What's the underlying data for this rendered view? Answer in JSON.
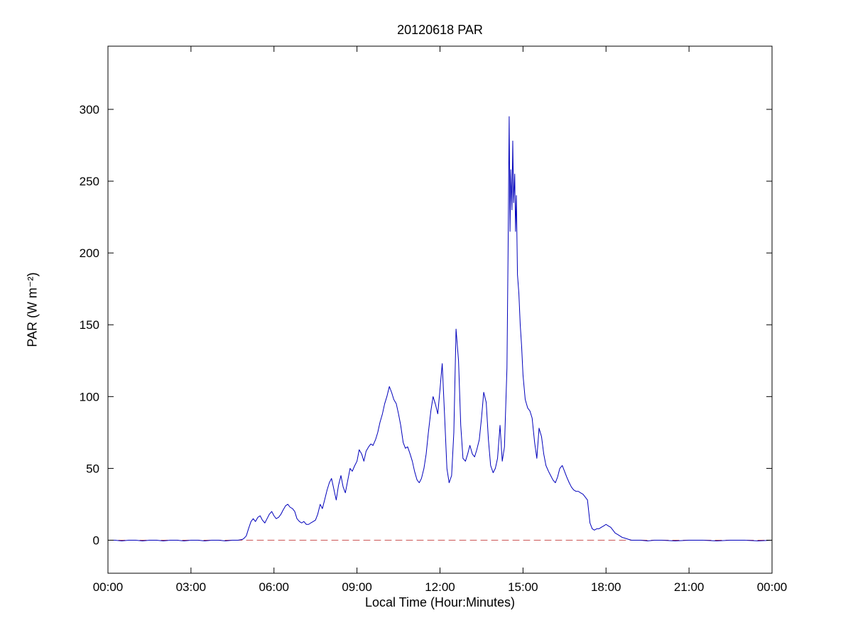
{
  "figure": {
    "title": "20120618 PAR",
    "xlabel": "Local Time (Hour:Minutes)",
    "ylabel": "PAR (W m⁻²)"
  },
  "colors": {
    "series_line": "#0000bb",
    "zero_line": "#cc5555",
    "axis": "#000000",
    "background": "#ffffff"
  },
  "chart_data": {
    "type": "line",
    "title": "20120618 PAR",
    "xlabel": "Local Time (Hour:Minutes)",
    "ylabel": "PAR (W m-2)",
    "xlim": [
      0,
      24
    ],
    "ylim": [
      -23,
      344
    ],
    "grid": false,
    "legend": "none",
    "xticks": [
      0,
      3,
      6,
      9,
      12,
      15,
      18,
      21,
      24
    ],
    "xticklabels": [
      "00:00",
      "03:00",
      "06:00",
      "09:00",
      "12:00",
      "15:00",
      "18:00",
      "21:00",
      "00:00"
    ],
    "yticks": [
      0,
      50,
      100,
      150,
      200,
      250,
      300
    ],
    "yticklabels": [
      "0",
      "50",
      "100",
      "150",
      "200",
      "250",
      "300"
    ],
    "series": [
      {
        "name": "PAR",
        "style": "solid",
        "color": "#0000bb",
        "points": [
          [
            0,
            0
          ],
          [
            0.25,
            0
          ],
          [
            0.5,
            -0.5
          ],
          [
            0.75,
            0
          ],
          [
            1,
            0
          ],
          [
            1.25,
            -0.5
          ],
          [
            1.5,
            0
          ],
          [
            1.75,
            0
          ],
          [
            2,
            -0.5
          ],
          [
            2.25,
            0
          ],
          [
            2.5,
            0
          ],
          [
            2.75,
            -0.5
          ],
          [
            3,
            0
          ],
          [
            3.25,
            0
          ],
          [
            3.5,
            -0.5
          ],
          [
            3.75,
            0
          ],
          [
            4,
            0
          ],
          [
            4.25,
            -0.5
          ],
          [
            4.5,
            0
          ],
          [
            4.7,
            0
          ],
          [
            4.85,
            0.5
          ],
          [
            4.9,
            1
          ],
          [
            5.0,
            3
          ],
          [
            5.08,
            8
          ],
          [
            5.17,
            13
          ],
          [
            5.25,
            15
          ],
          [
            5.33,
            13
          ],
          [
            5.42,
            16
          ],
          [
            5.5,
            17
          ],
          [
            5.58,
            14
          ],
          [
            5.67,
            12
          ],
          [
            5.75,
            15
          ],
          [
            5.83,
            18
          ],
          [
            5.92,
            20
          ],
          [
            6.0,
            17
          ],
          [
            6.08,
            15
          ],
          [
            6.17,
            16
          ],
          [
            6.25,
            18
          ],
          [
            6.33,
            21
          ],
          [
            6.42,
            24
          ],
          [
            6.5,
            25
          ],
          [
            6.58,
            23
          ],
          [
            6.67,
            22
          ],
          [
            6.75,
            20
          ],
          [
            6.83,
            15
          ],
          [
            6.92,
            13
          ],
          [
            7.0,
            12
          ],
          [
            7.08,
            13
          ],
          [
            7.17,
            11
          ],
          [
            7.25,
            11
          ],
          [
            7.33,
            12
          ],
          [
            7.42,
            13
          ],
          [
            7.5,
            14
          ],
          [
            7.58,
            18
          ],
          [
            7.67,
            25
          ],
          [
            7.75,
            22
          ],
          [
            7.83,
            28
          ],
          [
            7.92,
            35
          ],
          [
            8.0,
            40
          ],
          [
            8.08,
            43
          ],
          [
            8.17,
            35
          ],
          [
            8.25,
            28
          ],
          [
            8.33,
            38
          ],
          [
            8.42,
            45
          ],
          [
            8.5,
            37
          ],
          [
            8.58,
            33
          ],
          [
            8.67,
            42
          ],
          [
            8.75,
            50
          ],
          [
            8.83,
            48
          ],
          [
            8.92,
            52
          ],
          [
            9.0,
            55
          ],
          [
            9.08,
            63
          ],
          [
            9.17,
            60
          ],
          [
            9.25,
            55
          ],
          [
            9.33,
            62
          ],
          [
            9.42,
            65
          ],
          [
            9.5,
            67
          ],
          [
            9.58,
            66
          ],
          [
            9.67,
            70
          ],
          [
            9.75,
            75
          ],
          [
            9.83,
            82
          ],
          [
            9.92,
            88
          ],
          [
            10.0,
            95
          ],
          [
            10.08,
            100
          ],
          [
            10.17,
            107
          ],
          [
            10.25,
            103
          ],
          [
            10.33,
            98
          ],
          [
            10.42,
            95
          ],
          [
            10.5,
            88
          ],
          [
            10.58,
            80
          ],
          [
            10.67,
            68
          ],
          [
            10.75,
            64
          ],
          [
            10.83,
            65
          ],
          [
            10.92,
            60
          ],
          [
            11.0,
            55
          ],
          [
            11.08,
            48
          ],
          [
            11.17,
            42
          ],
          [
            11.25,
            40
          ],
          [
            11.33,
            43
          ],
          [
            11.42,
            50
          ],
          [
            11.5,
            60
          ],
          [
            11.58,
            75
          ],
          [
            11.67,
            90
          ],
          [
            11.75,
            100
          ],
          [
            11.83,
            95
          ],
          [
            11.92,
            88
          ],
          [
            12.0,
            105
          ],
          [
            12.08,
            123
          ],
          [
            12.17,
            85
          ],
          [
            12.25,
            50
          ],
          [
            12.33,
            40
          ],
          [
            12.42,
            45
          ],
          [
            12.5,
            75
          ],
          [
            12.58,
            147
          ],
          [
            12.67,
            125
          ],
          [
            12.75,
            80
          ],
          [
            12.83,
            57
          ],
          [
            12.92,
            55
          ],
          [
            13.0,
            60
          ],
          [
            13.08,
            66
          ],
          [
            13.17,
            60
          ],
          [
            13.25,
            58
          ],
          [
            13.33,
            63
          ],
          [
            13.42,
            70
          ],
          [
            13.5,
            85
          ],
          [
            13.58,
            103
          ],
          [
            13.67,
            96
          ],
          [
            13.75,
            70
          ],
          [
            13.83,
            52
          ],
          [
            13.92,
            47
          ],
          [
            14.0,
            50
          ],
          [
            14.08,
            57
          ],
          [
            14.17,
            80
          ],
          [
            14.25,
            55
          ],
          [
            14.33,
            65
          ],
          [
            14.42,
            120
          ],
          [
            14.46,
            200
          ],
          [
            14.5,
            295
          ],
          [
            14.53,
            215
          ],
          [
            14.56,
            258
          ],
          [
            14.6,
            230
          ],
          [
            14.63,
            278
          ],
          [
            14.66,
            235
          ],
          [
            14.7,
            255
          ],
          [
            14.73,
            215
          ],
          [
            14.76,
            240
          ],
          [
            14.8,
            185
          ],
          [
            14.85,
            172
          ],
          [
            14.9,
            150
          ],
          [
            14.95,
            135
          ],
          [
            15.0,
            115
          ],
          [
            15.08,
            98
          ],
          [
            15.17,
            92
          ],
          [
            15.25,
            90
          ],
          [
            15.33,
            85
          ],
          [
            15.42,
            68
          ],
          [
            15.5,
            57
          ],
          [
            15.58,
            78
          ],
          [
            15.67,
            72
          ],
          [
            15.75,
            60
          ],
          [
            15.83,
            52
          ],
          [
            15.92,
            48
          ],
          [
            16.0,
            45
          ],
          [
            16.08,
            42
          ],
          [
            16.17,
            40
          ],
          [
            16.25,
            44
          ],
          [
            16.33,
            50
          ],
          [
            16.42,
            52
          ],
          [
            16.5,
            48
          ],
          [
            16.58,
            44
          ],
          [
            16.67,
            40
          ],
          [
            16.75,
            37
          ],
          [
            16.83,
            35
          ],
          [
            16.92,
            34
          ],
          [
            17.0,
            34
          ],
          [
            17.08,
            33
          ],
          [
            17.17,
            32
          ],
          [
            17.25,
            30
          ],
          [
            17.33,
            28
          ],
          [
            17.42,
            12
          ],
          [
            17.5,
            8
          ],
          [
            17.58,
            7
          ],
          [
            17.67,
            8
          ],
          [
            17.75,
            8
          ],
          [
            17.83,
            9
          ],
          [
            17.92,
            10
          ],
          [
            18.0,
            11
          ],
          [
            18.08,
            10
          ],
          [
            18.17,
            9
          ],
          [
            18.25,
            7
          ],
          [
            18.33,
            5
          ],
          [
            18.42,
            4
          ],
          [
            18.5,
            3
          ],
          [
            18.58,
            2
          ],
          [
            18.67,
            1.5
          ],
          [
            18.75,
            1
          ],
          [
            18.83,
            0.5
          ],
          [
            18.92,
            0
          ],
          [
            19.0,
            0
          ],
          [
            19.25,
            0
          ],
          [
            19.5,
            -0.5
          ],
          [
            19.75,
            0
          ],
          [
            20,
            0
          ],
          [
            20.5,
            -0.5
          ],
          [
            21,
            0
          ],
          [
            21.5,
            0
          ],
          [
            22,
            -0.5
          ],
          [
            22.5,
            0
          ],
          [
            23,
            0
          ],
          [
            23.5,
            -0.5
          ],
          [
            24,
            0
          ]
        ]
      },
      {
        "name": "zero-reference",
        "style": "dashed",
        "color": "#cc5555",
        "points": [
          [
            0,
            0
          ],
          [
            24,
            0
          ]
        ]
      }
    ]
  }
}
